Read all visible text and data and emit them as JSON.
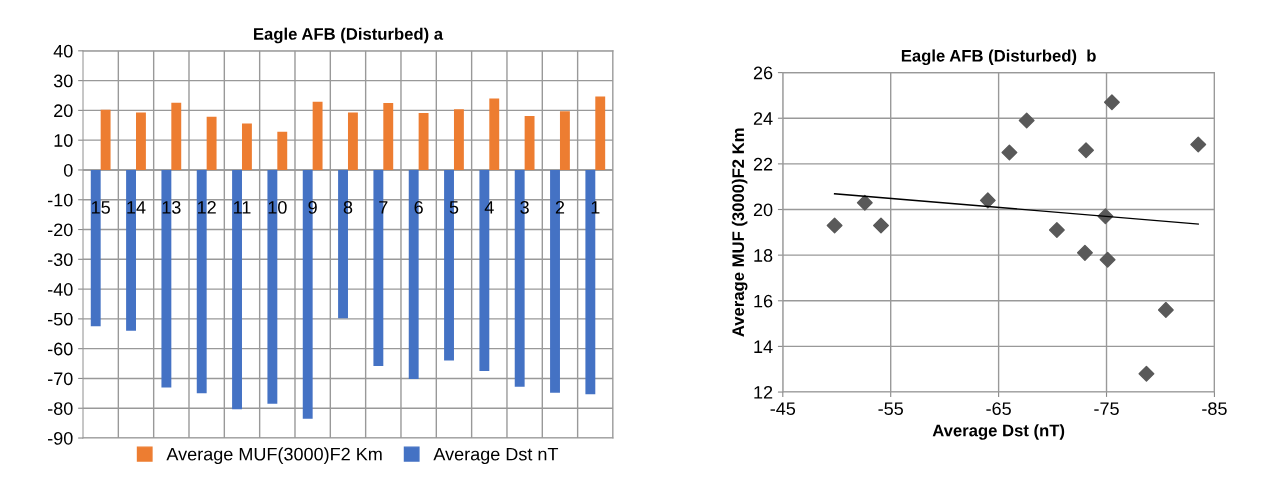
{
  "chart_data": [
    {
      "type": "bar",
      "title": "Eagle AFB (Disturbed) a",
      "categories": [
        "15",
        "14",
        "13",
        "12",
        "11",
        "10",
        "9",
        "8",
        "7",
        "6",
        "5",
        "4",
        "3",
        "2",
        "1"
      ],
      "series": [
        {
          "name": "Average Dst nT",
          "color": "#4472c4",
          "values": [
            -52.5,
            -54,
            -73,
            -75,
            -80.3,
            -78.5,
            -83.5,
            -49.8,
            -65.8,
            -70.2,
            -64,
            -67.5,
            -72.8,
            -74.8,
            -75.3
          ]
        },
        {
          "name": "Average MUF(3000)F2 Km",
          "color": "#ed7d31",
          "values": [
            20.2,
            19.3,
            22.6,
            17.9,
            15.6,
            12.8,
            22.9,
            19.3,
            22.5,
            19.1,
            20.4,
            24.0,
            18.1,
            19.7,
            24.7
          ]
        }
      ],
      "ylim": [
        -90,
        40
      ],
      "yticks": [
        -90,
        -80,
        -70,
        -60,
        -50,
        -40,
        -30,
        -20,
        -10,
        0,
        10,
        20,
        30,
        40
      ],
      "grid": true,
      "legend": "bottom"
    },
    {
      "type": "scatter",
      "title": "Eagle AFB (Disturbed)  b",
      "xlabel": "Average Dst (nT)",
      "ylabel": "Average MUF (3000)F2 Km",
      "series": [
        {
          "type": "scatter",
          "color": "#595959",
          "marker": "diamond",
          "x": [
            -49.8,
            -52.6,
            -54.1,
            -64.0,
            -66.0,
            -67.6,
            -70.4,
            -73.0,
            -73.1,
            -74.9,
            -75.1,
            -75.5,
            -78.7,
            -80.5,
            -83.5
          ],
          "values": [
            19.3,
            20.3,
            19.3,
            20.4,
            22.5,
            23.9,
            19.1,
            18.1,
            22.6,
            19.7,
            17.8,
            24.7,
            12.8,
            15.6,
            22.85
          ]
        },
        {
          "type": "line",
          "color": "#000000",
          "marker": "none",
          "x": [
            -49.8,
            -83.5
          ],
          "values": [
            20.69,
            19.36
          ]
        }
      ],
      "xlim": [
        -45,
        -85
      ],
      "xticks": [
        -45,
        -55,
        -65,
        -75,
        -85
      ],
      "ylim": [
        12,
        26
      ],
      "yticks": [
        12,
        14,
        16,
        18,
        20,
        22,
        24,
        26
      ],
      "grid": true
    }
  ]
}
